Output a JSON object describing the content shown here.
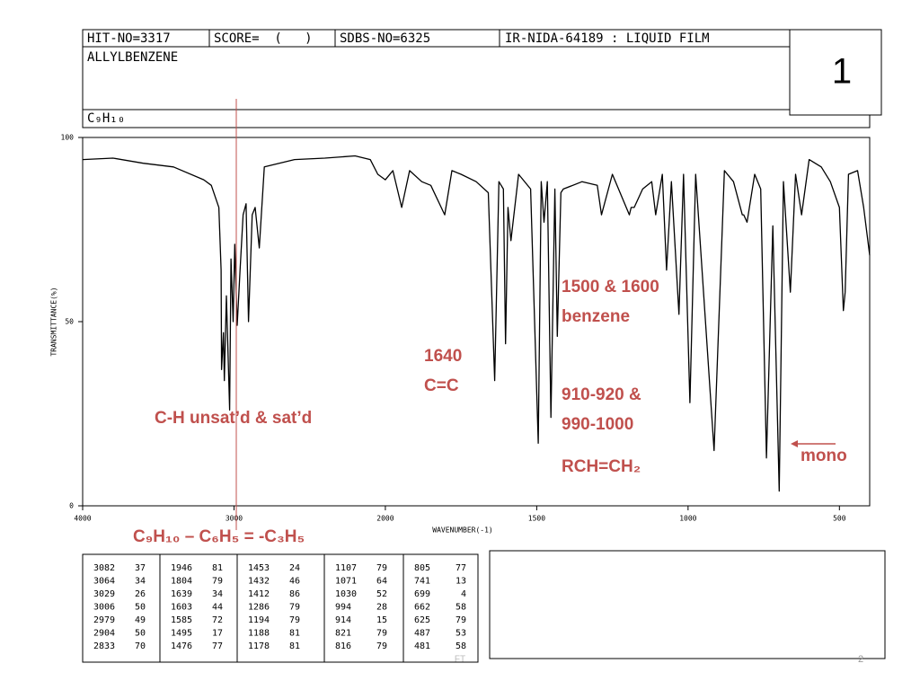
{
  "header": {
    "hit_no": "HIT-NO=3317",
    "score": "SCORE=  (   )",
    "sdbs_no": "SDBS-NO=6325",
    "method": "IR-NIDA-64189 : LIQUID FILM",
    "compound": "ALLYLBENZENE",
    "formula": "C₉H₁₀"
  },
  "slide_label": "1",
  "footer": {
    "left": "FT",
    "page": "2"
  },
  "chart_data": {
    "type": "line",
    "color": "#000000",
    "x_label": "WAVENUMBER(-1)",
    "y_label": "TRANSMITTANCE(%)",
    "xlim": [
      4000,
      400
    ],
    "x_scale_break": 2000,
    "xticks": [
      4000,
      3000,
      2000,
      1500,
      1000,
      500
    ],
    "ylim": [
      0,
      100
    ],
    "yticks": [
      0,
      50,
      100
    ],
    "x": [
      4000,
      3800,
      3600,
      3400,
      3200,
      3150,
      3100,
      3085,
      3082,
      3070,
      3064,
      3050,
      3029,
      3020,
      3006,
      2995,
      2979,
      2960,
      2940,
      2920,
      2904,
      2880,
      2860,
      2833,
      2800,
      2600,
      2400,
      2200,
      2100,
      2050,
      2000,
      1975,
      1946,
      1920,
      1880,
      1850,
      1804,
      1780,
      1750,
      1700,
      1660,
      1639,
      1625,
      1610,
      1603,
      1595,
      1585,
      1560,
      1520,
      1495,
      1485,
      1476,
      1465,
      1453,
      1440,
      1432,
      1420,
      1412,
      1350,
      1300,
      1286,
      1250,
      1194,
      1188,
      1178,
      1150,
      1120,
      1107,
      1085,
      1071,
      1055,
      1030,
      1015,
      994,
      975,
      914,
      880,
      850,
      821,
      816,
      805,
      780,
      760,
      741,
      720,
      699,
      685,
      662,
      645,
      625,
      600,
      560,
      530,
      500,
      487,
      481,
      470,
      440,
      420,
      400
    ],
    "values": [
      94,
      94.4,
      93,
      92,
      88.5,
      87,
      81,
      64,
      37,
      47,
      34,
      57,
      26,
      67,
      50,
      71,
      49,
      64,
      79,
      82,
      50,
      79,
      81,
      70,
      92,
      94,
      94.4,
      95,
      94,
      90,
      88.5,
      91,
      81,
      91,
      88,
      87,
      79,
      91,
      90,
      88,
      85,
      34,
      88,
      86,
      44,
      81,
      72,
      90,
      86,
      17,
      88,
      77,
      88,
      24,
      86,
      46,
      85,
      86,
      88,
      87,
      79,
      90,
      79,
      81,
      81,
      86,
      88,
      79,
      90,
      64,
      88,
      52,
      90,
      28,
      90,
      15,
      91,
      88,
      79,
      79,
      77,
      90,
      86,
      13,
      76,
      4,
      88,
      58,
      90,
      79,
      94,
      92,
      88,
      81,
      53,
      58,
      90,
      91,
      81,
      68
    ],
    "annotations": [
      {
        "lines": [
          "1500 & 1600",
          "benzene"
        ]
      },
      {
        "lines": [
          "1640",
          "C=C"
        ]
      },
      {
        "lines": [
          "910-920 &",
          "990-1000"
        ]
      },
      {
        "lines": [
          "RCH=CH₂"
        ]
      },
      {
        "lines": [
          "mono"
        ]
      },
      {
        "lines": [
          "C-H unsat’d & sat’d"
        ]
      },
      {
        "lines": [
          "C₉H₁₀ – C₆H₅ = -C₃H₅"
        ]
      }
    ]
  },
  "peak_table": [
    [
      [
        3082,
        37
      ],
      [
        3064,
        34
      ],
      [
        3029,
        26
      ],
      [
        3006,
        50
      ],
      [
        2979,
        49
      ],
      [
        2904,
        50
      ],
      [
        2833,
        70
      ]
    ],
    [
      [
        1946,
        81
      ],
      [
        1804,
        79
      ],
      [
        1639,
        34
      ],
      [
        1603,
        44
      ],
      [
        1585,
        72
      ],
      [
        1495,
        17
      ],
      [
        1476,
        77
      ]
    ],
    [
      [
        1453,
        24
      ],
      [
        1432,
        46
      ],
      [
        1412,
        86
      ],
      [
        1286,
        79
      ],
      [
        1194,
        79
      ],
      [
        1188,
        81
      ],
      [
        1178,
        81
      ]
    ],
    [
      [
        1107,
        79
      ],
      [
        1071,
        64
      ],
      [
        1030,
        52
      ],
      [
        994,
        28
      ],
      [
        914,
        15
      ],
      [
        821,
        79
      ],
      [
        816,
        79
      ]
    ],
    [
      [
        805,
        77
      ],
      [
        741,
        13
      ],
      [
        699,
        4
      ],
      [
        662,
        58
      ],
      [
        625,
        79
      ],
      [
        487,
        53
      ],
      [
        481,
        58
      ]
    ]
  ]
}
